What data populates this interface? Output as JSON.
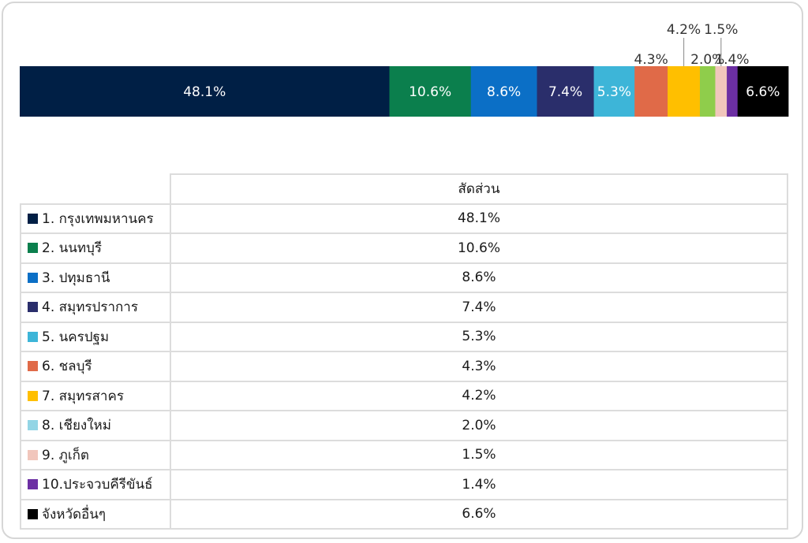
{
  "chart_data": {
    "type": "bar",
    "orientation": "horizontal-stacked-100",
    "title": "",
    "column_header": "สัดส่วน",
    "categories": [
      "1. กรุงเทพมหานคร",
      "2. นนทบุรี",
      "3. ปทุมธานี",
      "4. สมุทรปราการ",
      "5. นครปฐม",
      "6. ชลบุรี",
      "7. สมุทรสาคร",
      "8. เชียงใหม่",
      "9. ภูเก็ต",
      "10.ประจวบคีรีขันธ์",
      "จังหวัดอื่นๆ"
    ],
    "values": [
      48.1,
      10.6,
      8.6,
      7.4,
      5.3,
      4.3,
      4.2,
      2.0,
      1.5,
      1.4,
      6.6
    ],
    "value_labels": [
      "48.1%",
      "10.6%",
      "8.6%",
      "7.4%",
      "5.3%",
      "4.3%",
      "4.2%",
      "2.0%",
      "1.5%",
      "1.4%",
      "6.6%"
    ],
    "colors": [
      "#001f45",
      "#0b7f4d",
      "#0b6fc6",
      "#2a2e6b",
      "#3db5d8",
      "#e06a48",
      "#ffbf00",
      "#8fcd4b",
      "#f1c6bc",
      "#6c2fa3",
      "#000000"
    ],
    "legend_colors": [
      "#001f45",
      "#0b7f4d",
      "#0b6fc6",
      "#2a2e6b",
      "#3db5d8",
      "#e06a48",
      "#ffbf00",
      "#93d5e5",
      "#f1c6bc",
      "#6c2fa3",
      "#000000"
    ],
    "label_colors": [
      "#ffffff",
      "#ffffff",
      "#ffffff",
      "#ffffff",
      "#ffffff",
      "#333333",
      "#333333",
      "#333333",
      "#333333",
      "#333333",
      "#ffffff"
    ],
    "label_placement": [
      "inside",
      "inside",
      "inside",
      "inside",
      "inside",
      "above",
      "above-callout",
      "above",
      "above-callout",
      "above",
      "inside"
    ],
    "xlim": [
      0,
      100
    ],
    "grid": false
  }
}
